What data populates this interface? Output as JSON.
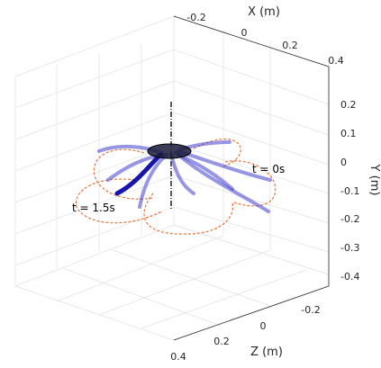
{
  "chart_data": {
    "type": "line",
    "title": "",
    "view": "3d",
    "axes": {
      "x": {
        "label": "X (m)",
        "ticks": [
          "-0.2",
          "0",
          "0.2",
          "0.4"
        ]
      },
      "y": {
        "label": "Y (m)",
        "ticks": [
          "0.2",
          "0.1",
          "0",
          "-0.1",
          "-0.2",
          "-0.3",
          "-0.4"
        ]
      },
      "z": {
        "label": "Z (m)",
        "ticks": [
          "0.4",
          "0.2",
          "0",
          "-0.2"
        ]
      }
    },
    "grid": true,
    "annotations": [
      {
        "text": "t = 0s"
      },
      {
        "text": "t = 1.5s"
      }
    ],
    "series": [
      {
        "role": "arm-configurations",
        "color": "#3b3bd6",
        "count": 9
      },
      {
        "role": "tip-trajectories",
        "color": "#e8743b",
        "linestyle": "dashed"
      },
      {
        "role": "central-axis",
        "color": "#000000",
        "linestyle": "dash-dot"
      }
    ]
  }
}
